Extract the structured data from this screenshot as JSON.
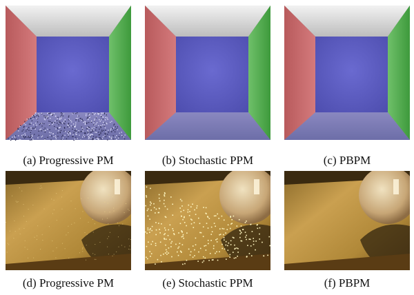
{
  "figure": {
    "captions": [
      "(a) Progressive PM",
      "(b) Stochastic PPM",
      "(c) PBPM",
      "(d) Progressive PM",
      "(e) Stochastic PPM",
      "(f) PBPM"
    ]
  }
}
